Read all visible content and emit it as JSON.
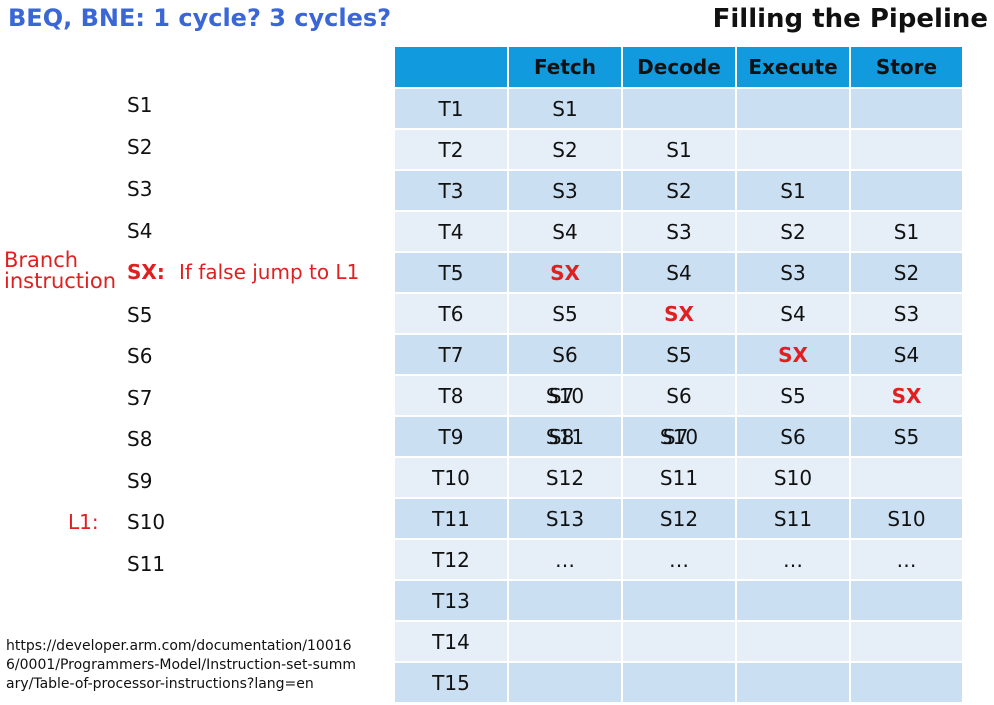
{
  "title_left": "BEQ, BNE: 1 cycle?  3 cycles?",
  "title_right": "Filling the Pipeline",
  "instructions": [
    "S1",
    "S2",
    "S3",
    "S4",
    "SX:",
    "S5",
    "S6",
    "S7",
    "S8",
    "S9",
    "S10",
    "S11"
  ],
  "branch_label": "Branch instruction",
  "branch_note": "If false jump to L1",
  "l1_label": "L1:",
  "url": "https://developer.arm.com/documentation/100166/0001/Programmers-Model/Instruction-set-summary/Table-of-processor-instructions?lang=en",
  "table": {
    "headers": [
      "",
      "Fetch",
      "Decode",
      "Execute",
      "Store"
    ],
    "rows": [
      [
        "T1",
        "S1",
        "",
        "",
        ""
      ],
      [
        "T2",
        "S2",
        "S1",
        "",
        ""
      ],
      [
        "T3",
        "S3",
        "S2",
        "S1",
        ""
      ],
      [
        "T4",
        "S4",
        "S3",
        "S2",
        "S1"
      ],
      [
        "T5",
        "SX",
        "S4",
        "S3",
        "S2"
      ],
      [
        "T6",
        "S5",
        "SX",
        "S4",
        "S3"
      ],
      [
        "T7",
        "S6",
        "S5",
        "SX",
        "S4"
      ],
      [
        "T8",
        "S10",
        "S6",
        "S5",
        "SX"
      ],
      [
        "T9",
        "S11",
        "S10",
        "S6",
        "S5"
      ],
      [
        "T10",
        "S12",
        "S11",
        "S10",
        ""
      ],
      [
        "T11",
        "S13",
        "S12",
        "S11",
        "S10"
      ],
      [
        "T12",
        "…",
        "…",
        "…",
        "…"
      ],
      [
        "T13",
        "",
        "",
        "",
        ""
      ],
      [
        "T14",
        "",
        "",
        "",
        ""
      ],
      [
        "T15",
        "",
        "",
        "",
        ""
      ]
    ],
    "overlays": {
      "t8_fetch_under": "S7",
      "t9_fetch_under": "S8",
      "t9_decode_under": "S7"
    }
  },
  "colors": {
    "title_blue": "#3a66d6",
    "header_blue": "#129adf",
    "row_dark": "#cbdff2",
    "row_light": "#e6eff8",
    "highlight_red": "#e02020"
  }
}
